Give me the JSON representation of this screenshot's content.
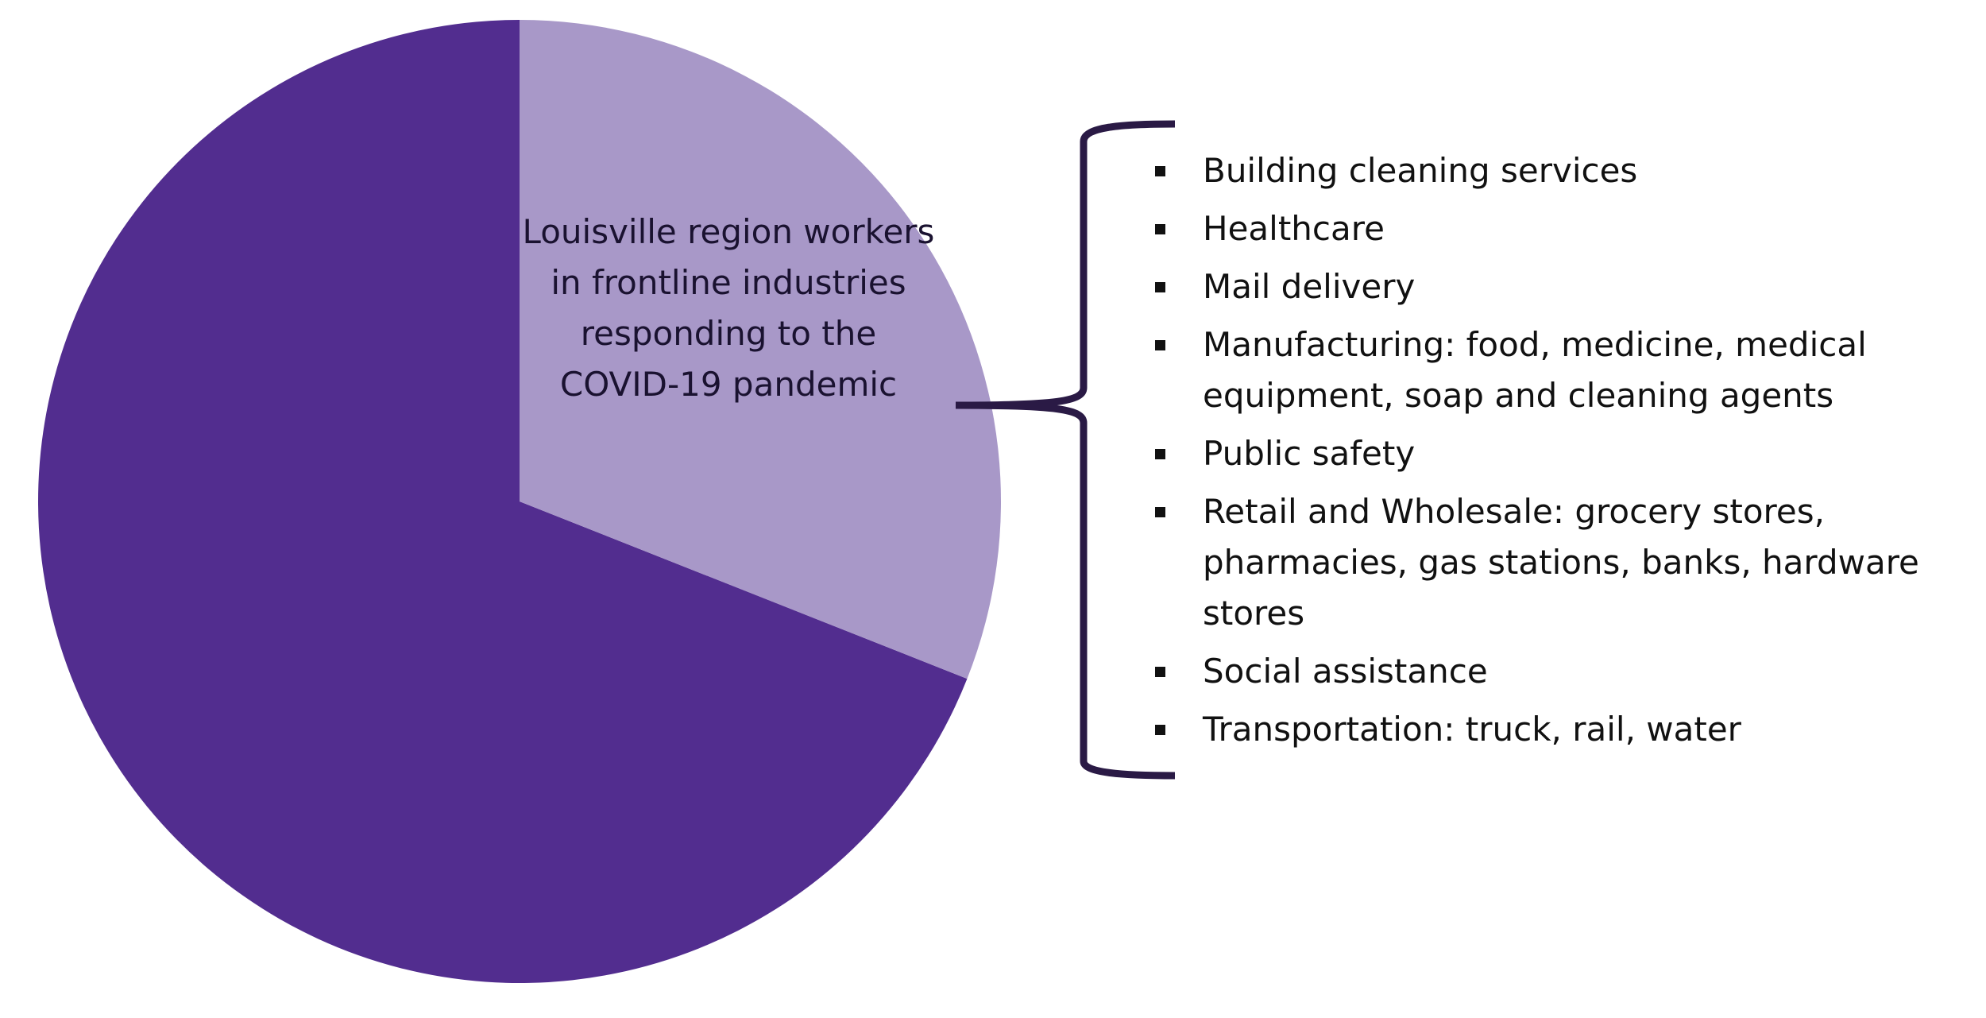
{
  "chart_data": {
    "type": "pie",
    "categories": [
      "Louisville region workers in frontline industries responding to the COVID-19 pandemic",
      null
    ],
    "values": [
      31,
      69
    ],
    "colors": [
      "#a898c8",
      "#522d8f"
    ],
    "annotation_list": [
      "Building cleaning services",
      "Healthcare",
      "Mail delivery",
      "Manufacturing: food, medicine, medical equipment, soap and cleaning agents",
      "Public safety",
      "Retail and Wholesale: grocery stores, pharmacies, gas stations, banks, hardware stores",
      "Social assistance",
      "Transportation: truck, rail, water"
    ]
  }
}
